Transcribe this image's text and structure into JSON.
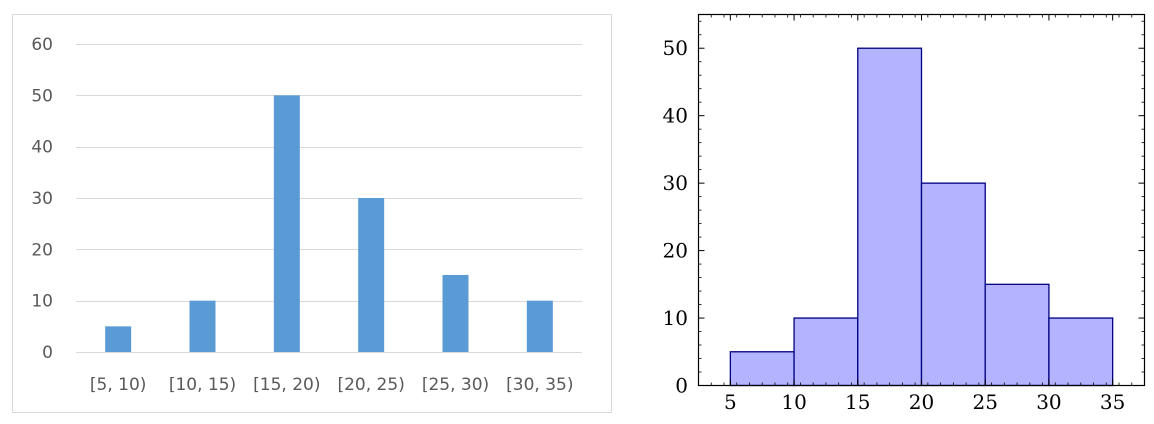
{
  "chart_data": [
    {
      "type": "bar",
      "categories": [
        "[5, 10)",
        "[10, 15)",
        "[15, 20)",
        "[20, 25)",
        "[25, 30)",
        "[30, 35)"
      ],
      "values": [
        5,
        10,
        50,
        30,
        15,
        10
      ],
      "ylim": [
        0,
        60
      ],
      "yticks": [
        0,
        10,
        20,
        30,
        40,
        50,
        60
      ],
      "grid": true,
      "legend": "none",
      "bar_color": "#5b9bd5",
      "grid_color": "#d9d9d9"
    },
    {
      "type": "bar",
      "histogram": true,
      "bin_edges": [
        5,
        10,
        15,
        20,
        25,
        30,
        35
      ],
      "values": [
        5,
        10,
        50,
        30,
        15,
        10
      ],
      "xlim": [
        2.5,
        37.5
      ],
      "ylim": [
        0,
        55
      ],
      "xticks": [
        5,
        10,
        15,
        20,
        25,
        30,
        35
      ],
      "yticks": [
        0,
        10,
        20,
        30,
        40,
        50
      ],
      "grid": false,
      "legend": "none",
      "fill_color": "#b3b3ff",
      "edge_color": "#000080"
    }
  ]
}
